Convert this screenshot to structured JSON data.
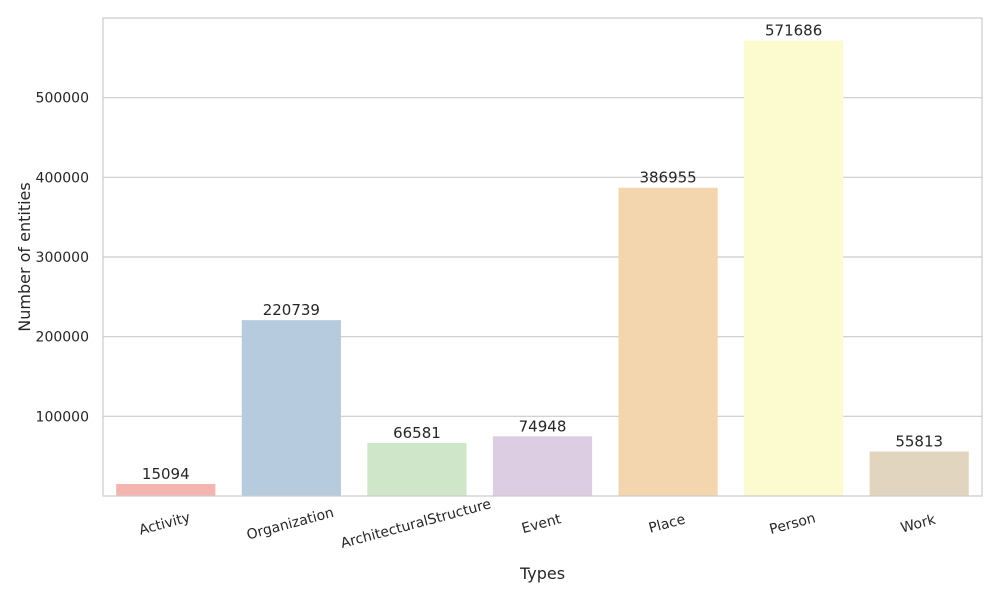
{
  "chart_data": {
    "type": "bar",
    "categories": [
      "Activity",
      "Organization",
      "ArchitecturalStructure",
      "Event",
      "Place",
      "Person",
      "Work"
    ],
    "values": [
      15094,
      220739,
      66581,
      74948,
      386955,
      571686,
      55813
    ],
    "colors": [
      "#f4b5b1",
      "#b7cbdf",
      "#cfe6c9",
      "#dccde2",
      "#f3d6ad",
      "#fbfbcf",
      "#e2d5bf"
    ],
    "xlabel": "Types",
    "ylabel": "Number of entities",
    "yticks": [
      100000,
      200000,
      300000,
      400000,
      500000
    ],
    "ylim": [
      0,
      600000
    ],
    "grid": "horizontal",
    "legend": "none"
  }
}
